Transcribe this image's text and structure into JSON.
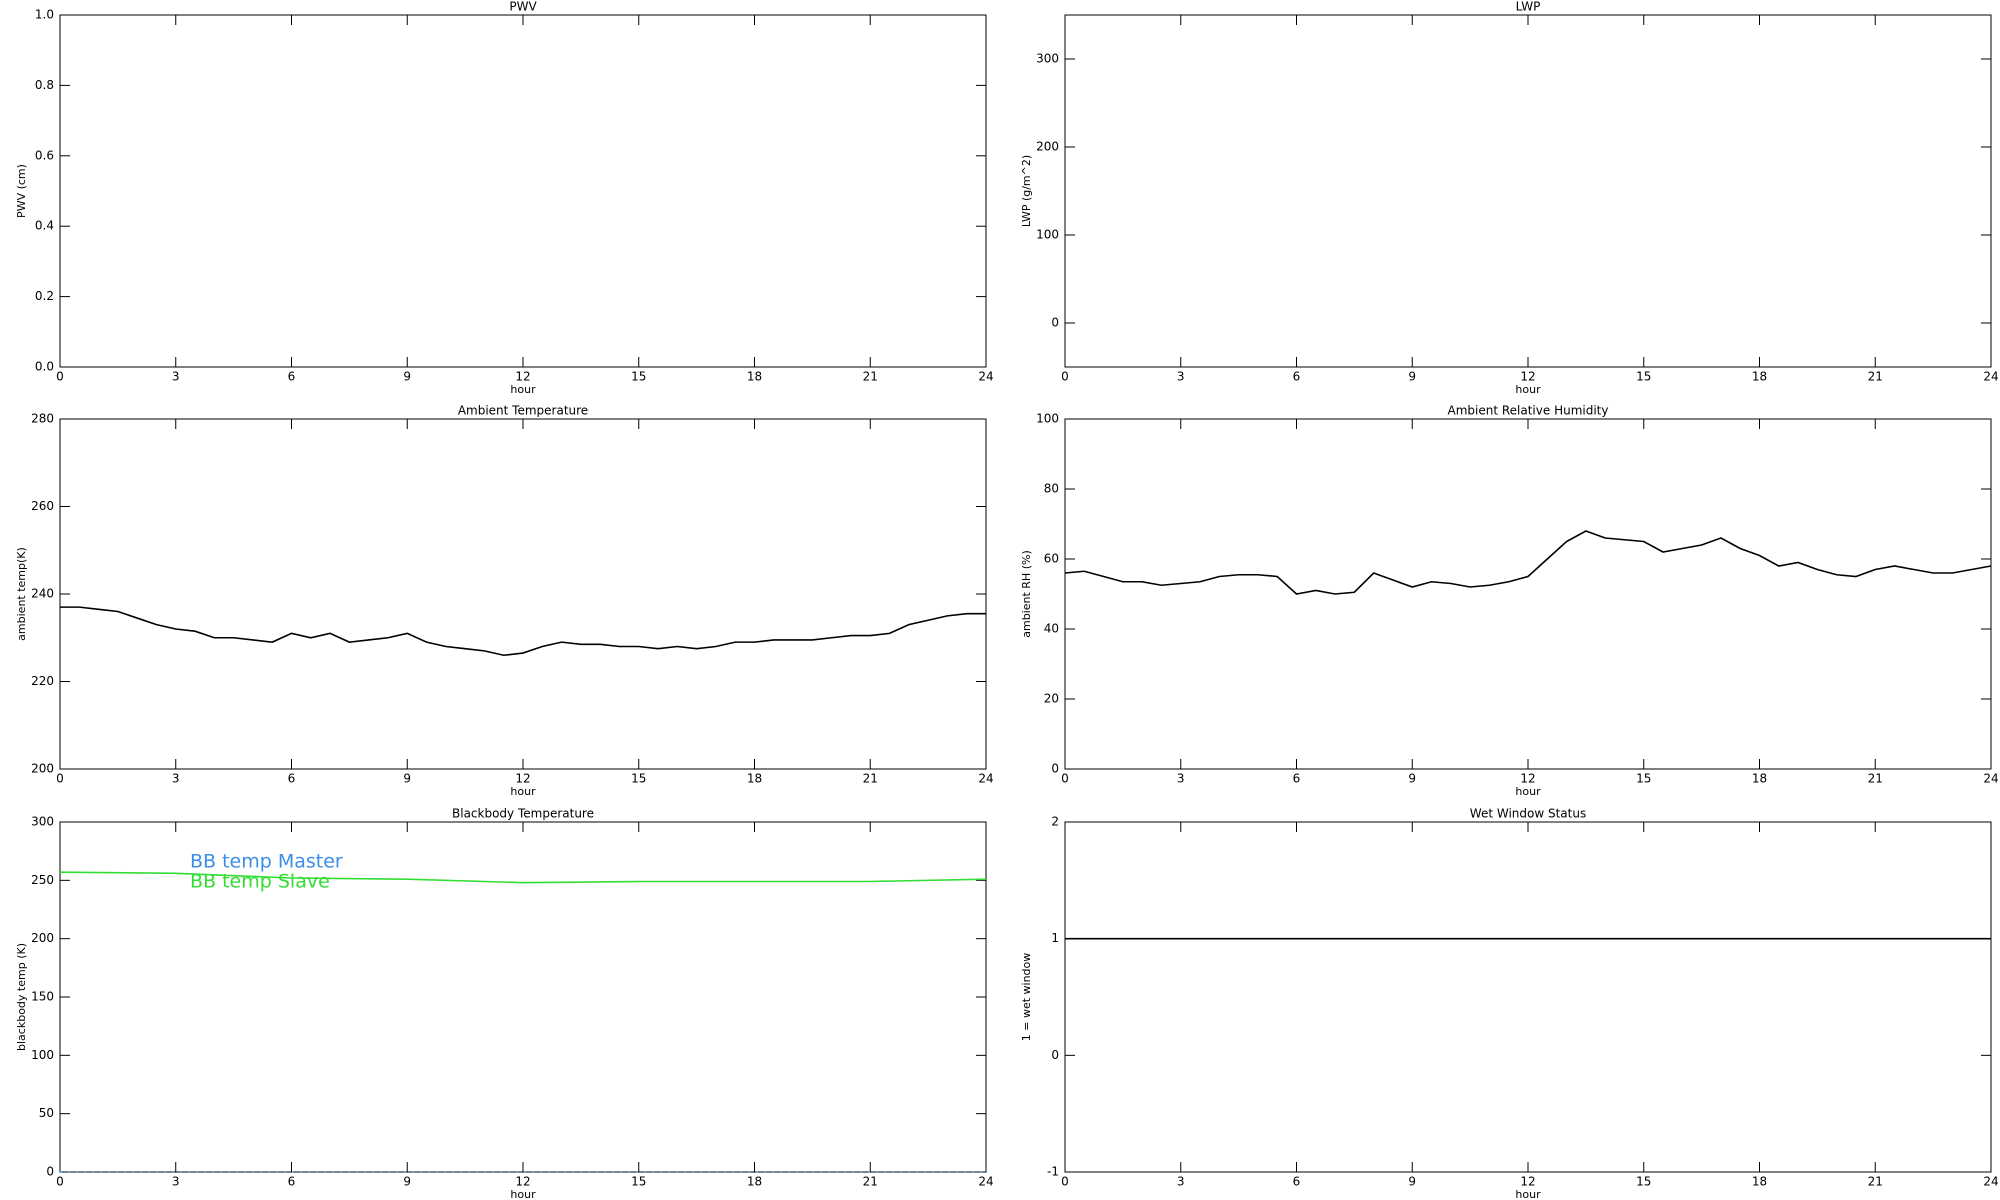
{
  "chart_data": [
    {
      "type": "line",
      "title": "PWV",
      "xlabel": "hour",
      "ylabel": "PWV (cm)",
      "xlim": [
        0,
        24
      ],
      "xticks": [
        0,
        3,
        6,
        9,
        12,
        15,
        18,
        21,
        24
      ],
      "ylim": [
        0,
        1
      ],
      "yticks": [
        {
          "value": 0,
          "label": "0.0"
        },
        0.2,
        0.4,
        0.6,
        0.8,
        {
          "value": 1,
          "label": "1.0"
        }
      ]
    },
    {
      "type": "line",
      "title": "LWP",
      "xlabel": "hour",
      "ylabel": "LWP (g/m^2)",
      "xlim": [
        0,
        24
      ],
      "xticks": [
        0,
        3,
        6,
        9,
        12,
        15,
        18,
        21,
        24
      ],
      "ylim": [
        -50,
        350
      ],
      "yticks": [
        0,
        100,
        200,
        300
      ]
    },
    {
      "type": "line",
      "title": "Ambient Temperature",
      "xlabel": "hour",
      "ylabel": "ambient temp(K)",
      "xlim": [
        0,
        24
      ],
      "xticks": [
        0,
        3,
        6,
        9,
        12,
        15,
        18,
        21,
        24
      ],
      "ylim": [
        200,
        280
      ],
      "yticks": [
        200,
        220,
        240,
        260,
        280
      ],
      "x": [
        0,
        0.5,
        1,
        1.5,
        2,
        2.5,
        3,
        3.5,
        4,
        4.5,
        5,
        5.5,
        6,
        6.5,
        7,
        7.5,
        8,
        8.5,
        9,
        9.5,
        10,
        10.5,
        11,
        11.5,
        12,
        12.5,
        13,
        13.5,
        14,
        14.5,
        15,
        15.5,
        16,
        16.5,
        17,
        17.5,
        18,
        18.5,
        19,
        19.5,
        20,
        20.5,
        21,
        21.5,
        22,
        22.5,
        23,
        23.5,
        24
      ],
      "series": [
        {
          "color": "#000000",
          "values": [
            237,
            237,
            236.5,
            236,
            234.5,
            233,
            232,
            231.5,
            230,
            230,
            229.5,
            229,
            231,
            230,
            231,
            229,
            229.5,
            230,
            231,
            229,
            228,
            227.5,
            227,
            226,
            226.5,
            228,
            229,
            228.5,
            228.5,
            228,
            228,
            227.5,
            228,
            227.5,
            228,
            229,
            229,
            229.5,
            229.5,
            229.5,
            230,
            230.5,
            230.5,
            231,
            233,
            234,
            235,
            235.5,
            235.5
          ]
        }
      ]
    },
    {
      "type": "line",
      "title": "Ambient Relative Humidity",
      "xlabel": "hour",
      "ylabel": "ambient RH (%)",
      "xlim": [
        0,
        24
      ],
      "xticks": [
        0,
        3,
        6,
        9,
        12,
        15,
        18,
        21,
        24
      ],
      "ylim": [
        0,
        100
      ],
      "yticks": [
        0,
        20,
        40,
        60,
        80,
        100
      ],
      "x": [
        0,
        0.5,
        1,
        1.5,
        2,
        2.5,
        3,
        3.5,
        4,
        4.5,
        5,
        5.5,
        6,
        6.5,
        7,
        7.5,
        8,
        8.5,
        9,
        9.5,
        10,
        10.5,
        11,
        11.5,
        12,
        12.5,
        13,
        13.5,
        14,
        14.5,
        15,
        15.5,
        16,
        16.5,
        17,
        17.5,
        18,
        18.5,
        19,
        19.5,
        20,
        20.5,
        21,
        21.5,
        22,
        22.5,
        23,
        23.5,
        24
      ],
      "series": [
        {
          "color": "#000000",
          "values": [
            56,
            56.5,
            55,
            53.5,
            53.5,
            52.5,
            53,
            53.5,
            55,
            55.5,
            55.5,
            55,
            50,
            51,
            50,
            50.5,
            56,
            54,
            52,
            53.5,
            53,
            52,
            52.5,
            53.5,
            55,
            60,
            65,
            68,
            66,
            65.5,
            65,
            62,
            63,
            64,
            66,
            63,
            61,
            58,
            59,
            57,
            55.5,
            55,
            57,
            58,
            57,
            56,
            56,
            57,
            58
          ]
        }
      ]
    },
    {
      "type": "line",
      "title": "Blackbody Temperature",
      "xlabel": "hour",
      "ylabel": "blackbody temp (K)",
      "xlim": [
        0,
        24
      ],
      "xticks": [
        0,
        3,
        6,
        9,
        12,
        15,
        18,
        21,
        24
      ],
      "ylim": [
        0,
        300
      ],
      "yticks": [
        0,
        50,
        100,
        150,
        200,
        250,
        300
      ],
      "legend": "upper left",
      "x": [
        0,
        3,
        6,
        9,
        12,
        15,
        18,
        21,
        24
      ],
      "series": [
        {
          "name": "BB temp Master",
          "color": "#3b8ee8",
          "linestyle": "dotted",
          "values": [
            0,
            0,
            0,
            0,
            0,
            0,
            0,
            0,
            0
          ]
        },
        {
          "name": "BB temp Slave",
          "color": "#33dd33",
          "values": [
            257,
            256,
            252,
            251,
            248,
            249,
            249,
            249,
            251
          ]
        }
      ]
    },
    {
      "type": "line",
      "title": "Wet Window Status",
      "xlabel": "hour",
      "ylabel": "1 = wet window",
      "xlim": [
        0,
        24
      ],
      "xticks": [
        0,
        3,
        6,
        9,
        12,
        15,
        18,
        21,
        24
      ],
      "ylim": [
        -1,
        2
      ],
      "yticks": [
        -1,
        0,
        1,
        2
      ],
      "x": [
        0,
        24
      ],
      "series": [
        {
          "color": "#000000",
          "values": [
            1,
            1
          ]
        }
      ]
    }
  ]
}
